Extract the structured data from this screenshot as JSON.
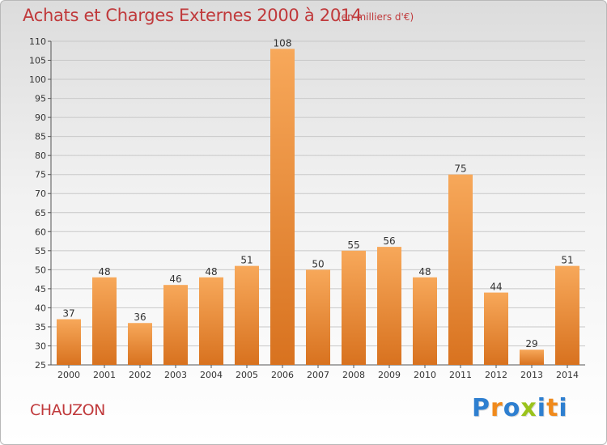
{
  "header": {
    "title": "Achats et Charges Externes 2000 à 2014",
    "subtitle": "(en milliers d'€)"
  },
  "footer": {
    "commune": "CHAUZON",
    "brand_letters": [
      "P",
      "r",
      "o",
      "x",
      "i",
      "t",
      "i"
    ]
  },
  "colors": {
    "title": "#c0393b",
    "bar_top": "#f7a85a",
    "bar_bottom": "#d8721f",
    "grid": "#c8c8c8",
    "brand": [
      "#2e7fd0",
      "#f08a1c",
      "#2e7fd0",
      "#9ac31c",
      "#2e7fd0",
      "#f08a1c",
      "#2e7fd0"
    ]
  },
  "chart_data": {
    "type": "bar",
    "categories": [
      "2000",
      "2001",
      "2002",
      "2003",
      "2004",
      "2005",
      "2006",
      "2007",
      "2008",
      "2009",
      "2010",
      "2011",
      "2012",
      "2013",
      "2014"
    ],
    "values": [
      37,
      48,
      36,
      46,
      48,
      51,
      108,
      50,
      55,
      56,
      48,
      75,
      44,
      29,
      51
    ],
    "value_labels": [
      "37",
      "48",
      "36",
      "46",
      "48",
      "51",
      "108",
      "50",
      "55",
      "56",
      "48",
      "75",
      "44",
      "29",
      "51"
    ],
    "title": "Achats et Charges Externes 2000 à 2014",
    "ylim": [
      25,
      110
    ],
    "yticks": [
      "25",
      "30",
      "35",
      "40",
      "45",
      "50",
      "55",
      "60",
      "65",
      "70",
      "75",
      "80",
      "85",
      "90",
      "95",
      "100",
      "105",
      "110"
    ],
    "grid": true
  }
}
